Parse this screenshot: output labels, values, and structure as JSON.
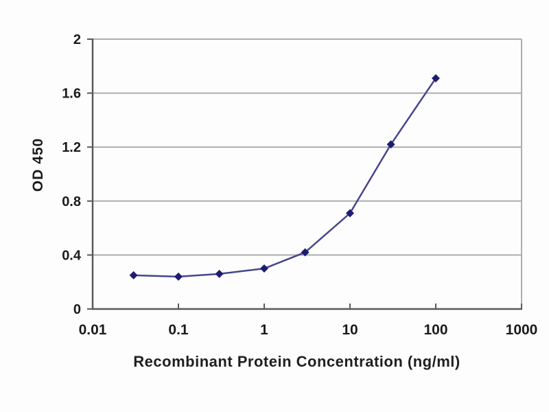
{
  "chart_data": {
    "type": "line",
    "title": "",
    "xlabel": "Recombinant Protein Concentration (ng/ml)",
    "ylabel": "OD 450",
    "x_scale": "log",
    "xlim": [
      0.01,
      1000
    ],
    "ylim": [
      0,
      2
    ],
    "x_ticks": [
      0.01,
      0.1,
      1,
      10,
      100,
      1000
    ],
    "x_tick_labels": [
      "0.01",
      "0.1",
      "1",
      "10",
      "100",
      "1000"
    ],
    "y_ticks": [
      0,
      0.4,
      0.8,
      1.2,
      1.6,
      2
    ],
    "y_tick_labels": [
      "0",
      "0.4",
      "0.8",
      "1.2",
      "1.6",
      "2"
    ],
    "grid": "horizontal",
    "legend": "none",
    "series": [
      {
        "name": "OD 450",
        "marker": "diamond",
        "x": [
          0.03,
          0.1,
          0.3,
          1,
          3,
          10,
          30,
          100
        ],
        "y": [
          0.25,
          0.24,
          0.26,
          0.3,
          0.42,
          0.71,
          1.22,
          1.71
        ]
      }
    ],
    "colors": {
      "line": "#45458c",
      "marker": "#1d1d70",
      "grid": "#adadad",
      "axis": "#595959",
      "text": "#1a1a1a",
      "background": "#fdfdfd"
    }
  }
}
